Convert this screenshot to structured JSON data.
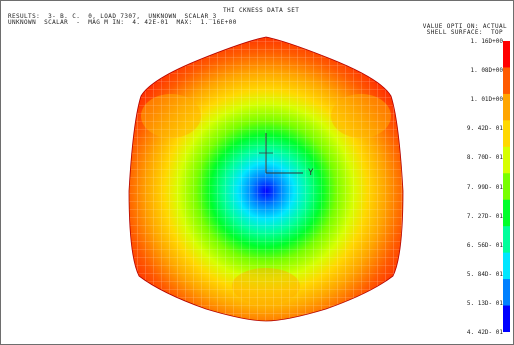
{
  "header": {
    "title": "THI CKNESS DATA SET",
    "results_line1": "RESULTS:  3- B. C.  0, LOAD 7307,  UNKNOWN  SCALAR_3",
    "results_line2": "UNKNOWN  SCALAR  -  MAG M IN:  4. 42E-01  MAX:  1. 16E+00"
  },
  "legend": {
    "heading": "VALUE OPTI ON: ACTUAL",
    "subheading": "SHELL SURFACE:  TOP",
    "ticks": [
      "1. 16D+00",
      "1. 08D+00",
      "1. 01D+00",
      "9. 42D- 01",
      "8. 70D- 01",
      "7. 99D- 01",
      "7. 27D- 01",
      "6. 56D- 01",
      "5. 84D- 01",
      "5. 13D- 01",
      "4. 42D- 01"
    ],
    "colors": [
      "#ff0000",
      "#ff5a00",
      "#ffa500",
      "#ffd800",
      "#d6ff00",
      "#78ff00",
      "#00ff2a",
      "#00ff9b",
      "#00e6ff",
      "#0080ff",
      "#0000ff"
    ]
  },
  "axes": {
    "y_label": "Y"
  }
}
